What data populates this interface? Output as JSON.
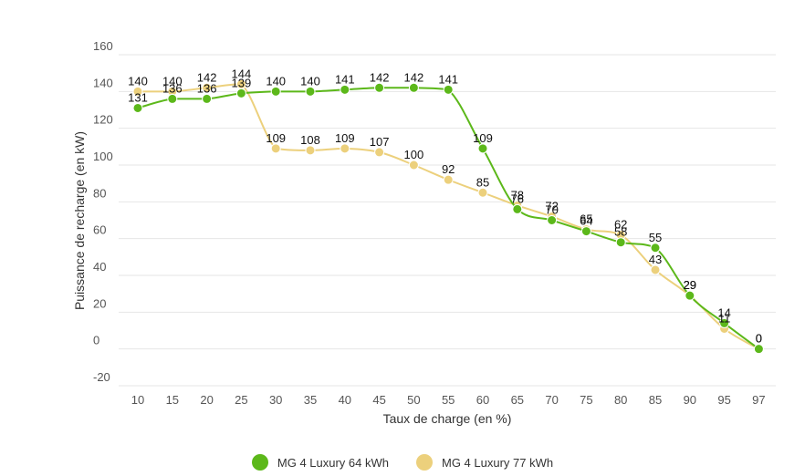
{
  "chart_data": {
    "type": "line",
    "title": "",
    "xlabel": "Taux de charge (en %)",
    "ylabel": "Puissance de recharge (en kW)",
    "categories": [
      "10",
      "15",
      "20",
      "25",
      "30",
      "35",
      "40",
      "45",
      "50",
      "55",
      "60",
      "65",
      "70",
      "75",
      "80",
      "85",
      "90",
      "95",
      "97"
    ],
    "yticks": [
      -20,
      0,
      20,
      40,
      60,
      80,
      100,
      120,
      140,
      160
    ],
    "ylim": [
      -20,
      160
    ],
    "grid": true,
    "legend_position": "bottom-center",
    "series": [
      {
        "name": "MG 4 Luxury 64 kWh",
        "color": "#5cb81a",
        "values": [
          131,
          136,
          136,
          139,
          140,
          140,
          141,
          142,
          142,
          141,
          109,
          76,
          70,
          64,
          58,
          55,
          29,
          14,
          0
        ]
      },
      {
        "name": "MG 4 Luxury 77 kWh",
        "color": "#ecd07c",
        "values": [
          140,
          140,
          142,
          144,
          109,
          108,
          109,
          107,
          100,
          92,
          85,
          78,
          72,
          65,
          62,
          43,
          29,
          11,
          0
        ]
      }
    ]
  }
}
